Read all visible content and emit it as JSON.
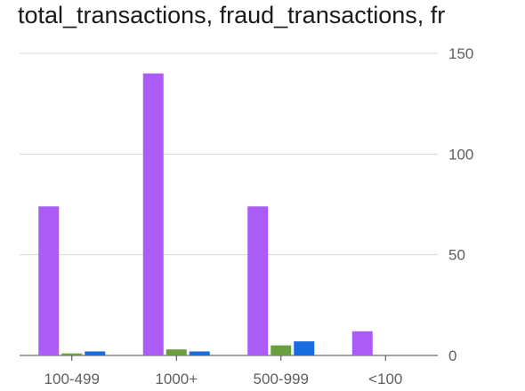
{
  "chart_data": {
    "type": "bar",
    "title": "total_transactions, fraud_transactions, fr",
    "categories": [
      "100-499",
      "1000+",
      "500-999",
      "<100"
    ],
    "series": [
      {
        "name": "total_transactions",
        "values": [
          74,
          140,
          74,
          12
        ]
      },
      {
        "name": "fraud_transactions",
        "values": [
          1,
          3,
          5,
          0
        ]
      },
      {
        "name": "",
        "values": [
          2,
          2,
          7,
          0
        ]
      }
    ],
    "colors": [
      "#ab5cf6",
      "#6a9f3e",
      "#1a6de0"
    ],
    "ylim": [
      0,
      150
    ],
    "yticks": [
      0,
      50,
      100,
      150
    ],
    "y_axis_side": "right",
    "grid": true,
    "xlabel": "",
    "ylabel": ""
  }
}
